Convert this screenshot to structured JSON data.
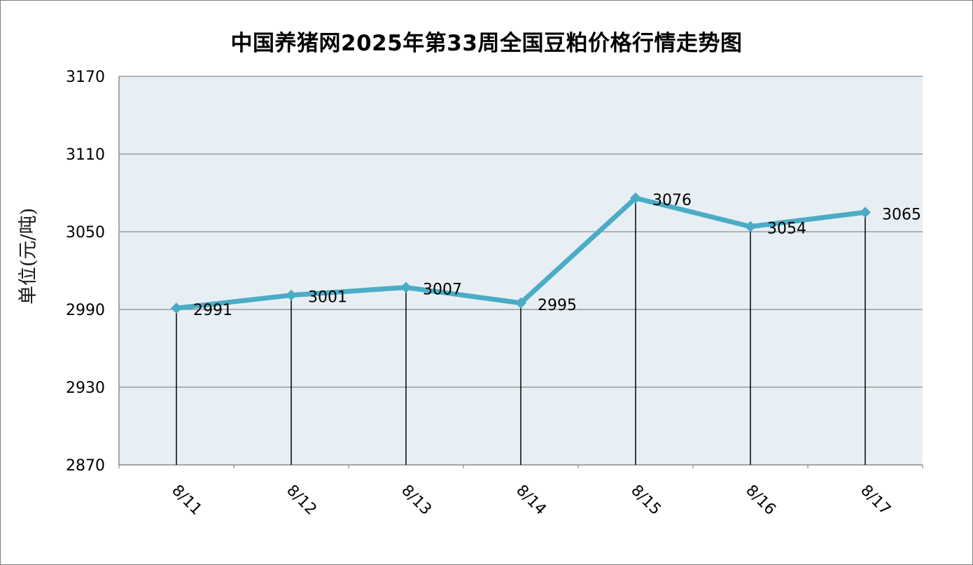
{
  "chart_data": {
    "type": "line",
    "title": "中国养猪网2025年第33周全国豆粕价格行情走势图",
    "ylabel": "单位(元/吨)",
    "xlabel": "",
    "categories": [
      "8/11",
      "8/12",
      "8/13",
      "8/14",
      "8/15",
      "8/16",
      "8/17"
    ],
    "series": [
      {
        "values": [
          2991,
          3001,
          3007,
          2995,
          3076,
          3054,
          3065
        ]
      }
    ],
    "data_labels": [
      "2991",
      "3001",
      "3007",
      "2995",
      "3076",
      "3054",
      "3065"
    ],
    "ylim": [
      2870,
      3170
    ],
    "yticks": [
      2870,
      2930,
      2990,
      3050,
      3110,
      3170
    ],
    "ytick_labels": [
      "2870",
      "2930",
      "2990",
      "3050",
      "3110",
      "3170"
    ],
    "grid": true,
    "drop_lines": true,
    "line_color": "#4bacc6",
    "plot_background": "#e8eff4"
  }
}
